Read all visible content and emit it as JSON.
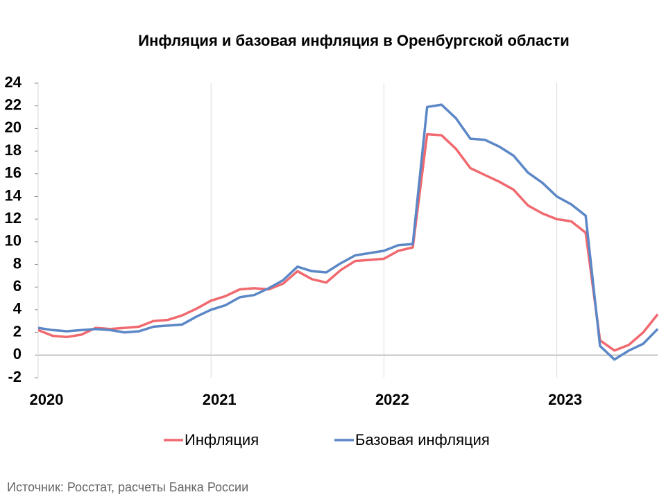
{
  "chart_data": {
    "type": "line",
    "title": "Инфляция и базовая инфляция в Оренбургской области",
    "source": "Источник: Росстат, расчеты Банка России",
    "categories": [
      "2020",
      null,
      null,
      null,
      null,
      null,
      null,
      null,
      null,
      null,
      null,
      null,
      "2021",
      null,
      null,
      null,
      null,
      null,
      null,
      null,
      null,
      null,
      null,
      null,
      "2022",
      null,
      null,
      null,
      null,
      null,
      null,
      null,
      null,
      null,
      null,
      null,
      "2023",
      null,
      null,
      null,
      null,
      null,
      null,
      null
    ],
    "series": [
      {
        "name": "Инфляция",
        "color": "#f0696f",
        "values": [
          2.2,
          1.7,
          1.6,
          1.8,
          2.4,
          2.3,
          2.4,
          2.5,
          3.0,
          3.1,
          3.5,
          4.1,
          4.8,
          5.2,
          5.8,
          5.9,
          5.8,
          6.3,
          7.4,
          6.7,
          6.4,
          7.5,
          8.3,
          8.4,
          8.5,
          9.2,
          9.5,
          19.5,
          19.4,
          18.2,
          16.5,
          15.9,
          15.3,
          14.6,
          13.2,
          12.5,
          12.0,
          11.8,
          10.8,
          1.3,
          0.4,
          0.9,
          2.0,
          3.6
        ]
      },
      {
        "name": "Базовая инфляция",
        "color": "#5b87c6",
        "values": [
          2.4,
          2.2,
          2.1,
          2.2,
          2.3,
          2.2,
          2.0,
          2.1,
          2.5,
          2.6,
          2.7,
          3.4,
          4.0,
          4.4,
          5.1,
          5.3,
          5.9,
          6.6,
          7.8,
          7.4,
          7.3,
          8.1,
          8.8,
          9.0,
          9.2,
          9.7,
          9.8,
          21.9,
          22.1,
          20.9,
          19.1,
          19.0,
          18.4,
          17.6,
          16.1,
          15.2,
          14.0,
          13.3,
          12.3,
          0.8,
          -0.4,
          0.4,
          1.0,
          2.3
        ]
      }
    ],
    "ylim": [
      -2,
      24
    ],
    "yticks": [
      -2,
      0,
      2,
      4,
      6,
      8,
      10,
      12,
      14,
      16,
      18,
      20,
      22,
      24
    ],
    "legend": "bottom"
  }
}
